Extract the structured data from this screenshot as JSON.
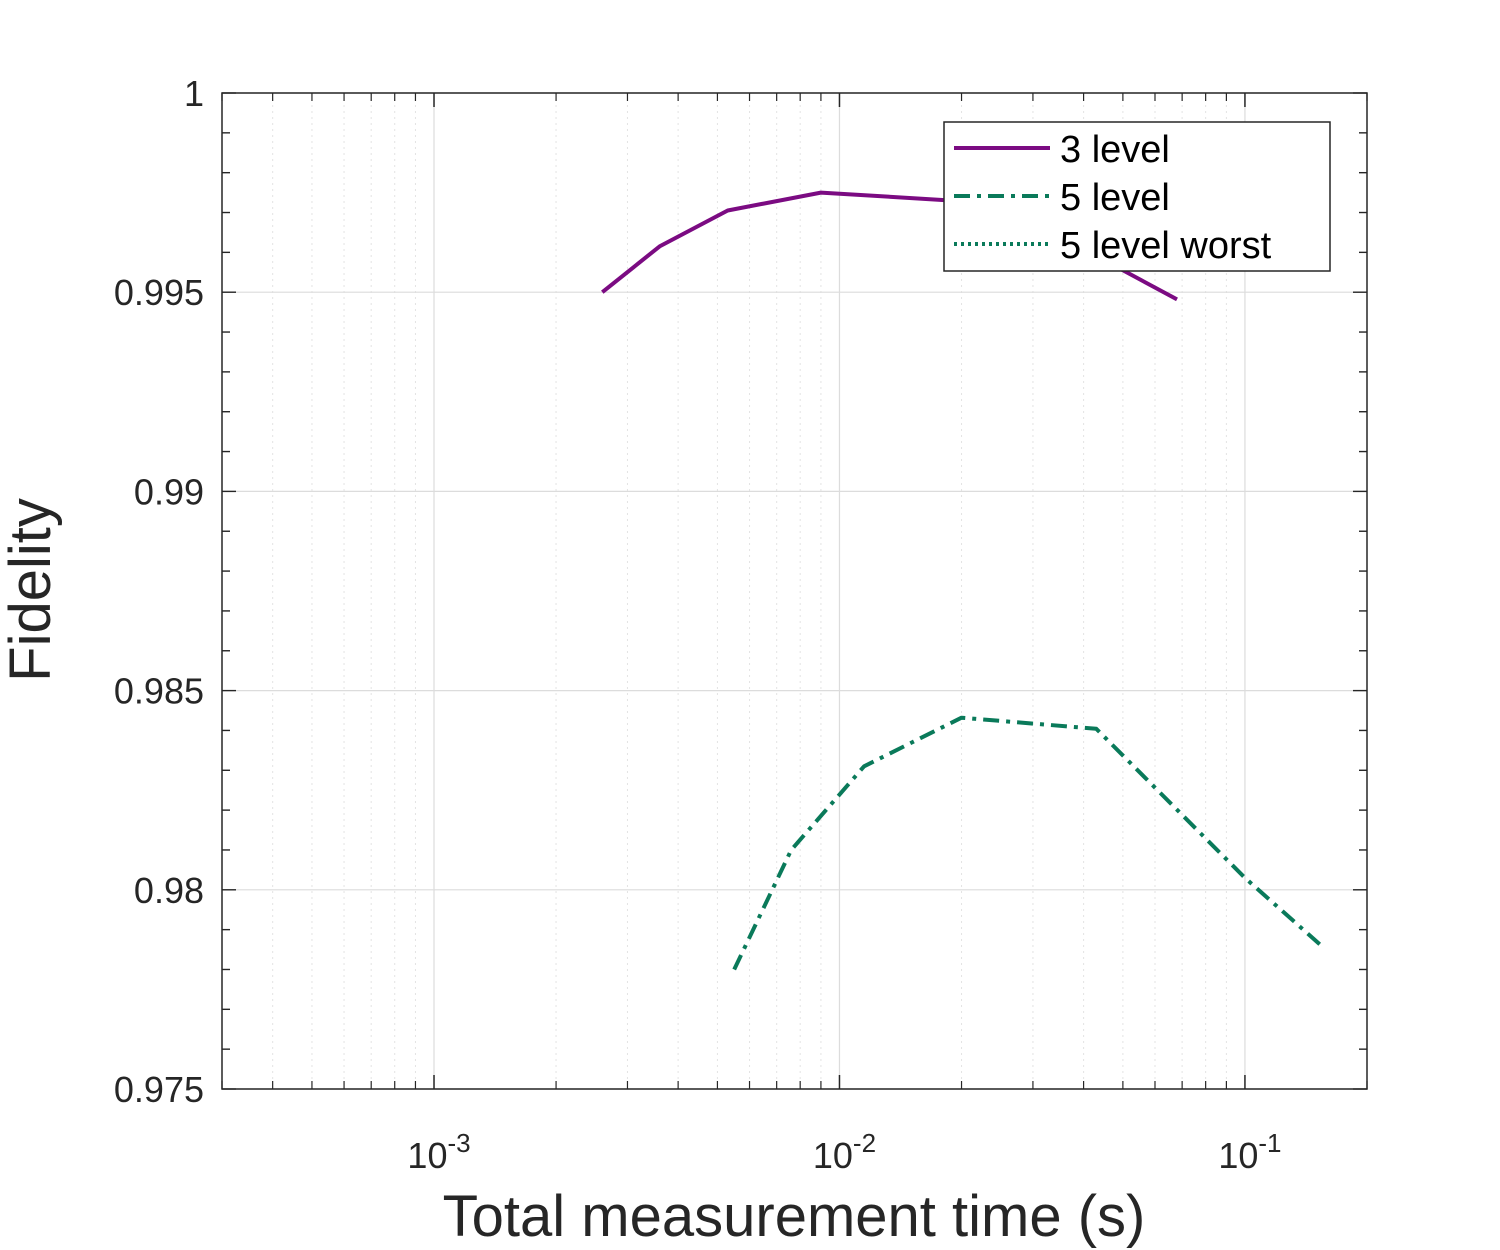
{
  "chart_data": {
    "type": "line",
    "title": "",
    "xlabel": "Total measurement time (s)",
    "ylabel": "Fidelity",
    "xscale": "log",
    "xlim": [
      0.0003,
      0.2
    ],
    "ylim": [
      0.975,
      1
    ],
    "grid": true,
    "legend_position": "top-right",
    "x_ticks": [
      {
        "value": 0.001,
        "base": "10",
        "exp": "-3"
      },
      {
        "value": 0.01,
        "base": "10",
        "exp": "-2"
      },
      {
        "value": 0.1,
        "base": "10",
        "exp": "-1"
      }
    ],
    "y_ticks": [
      {
        "value": 0.975,
        "label": "0.975"
      },
      {
        "value": 0.98,
        "label": "0.98"
      },
      {
        "value": 0.985,
        "label": "0.985"
      },
      {
        "value": 0.99,
        "label": "0.99"
      },
      {
        "value": 0.995,
        "label": "0.995"
      },
      {
        "value": 1,
        "label": "1"
      }
    ],
    "series": [
      {
        "name": "3 level",
        "color": "#7b0b82",
        "line_style": "solid",
        "x": [
          0.0026,
          0.0036,
          0.0053,
          0.009,
          0.019,
          0.045,
          0.068
        ],
        "y": [
          0.995,
          0.99615,
          0.99705,
          0.9975,
          0.9973,
          0.9958,
          0.99482
        ]
      },
      {
        "name": "5 level",
        "color": "#0a7a5a",
        "line_style": "dashdot",
        "x": [
          0.0055,
          0.0076,
          0.0115,
          0.02,
          0.043,
          0.1,
          0.155
        ],
        "y": [
          0.978,
          0.981,
          0.9831,
          0.98432,
          0.98404,
          0.9803,
          0.97858
        ]
      },
      {
        "name": "5 level worst",
        "color": "#0a7a5a",
        "line_style": "dotted",
        "x": [],
        "y": []
      }
    ]
  }
}
